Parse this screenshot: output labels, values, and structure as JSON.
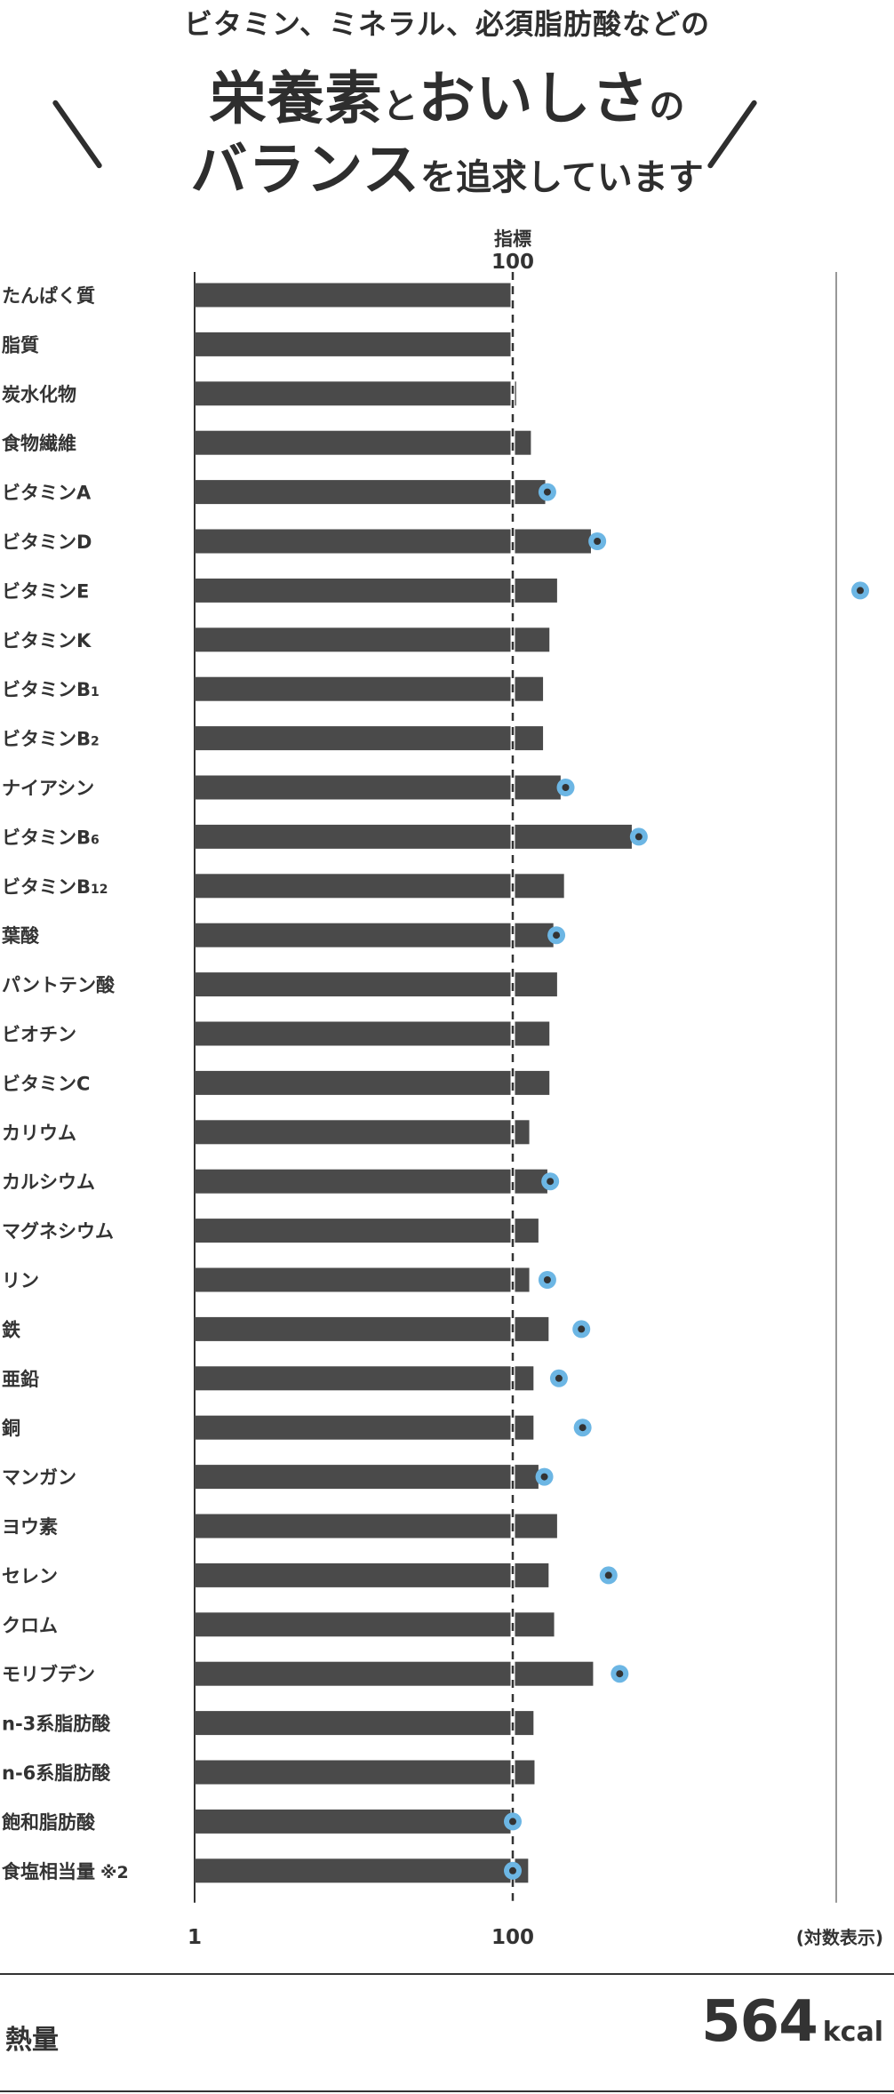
{
  "header": {
    "line1": "ビタミン、ミネラル、必須脂肪酸などの",
    "line2_big_a": "栄養素",
    "line2_small": "と",
    "line2_big_b": "おいしさ",
    "line2_small_b": "の",
    "line3_big": "バランス",
    "line3_small": "を追求しています"
  },
  "colors": {
    "bar": "#4a4a4a",
    "marker_ring": "#6cb6e4",
    "marker_dot": "#333333",
    "text": "#333333"
  },
  "chart_data": {
    "type": "bar",
    "orientation": "horizontal",
    "x_scale": "log",
    "reference": {
      "value": 100,
      "label_top": "指標",
      "label_bottom": "100"
    },
    "x_ticks": [
      "1",
      "100"
    ],
    "scale_note": "(対数表示)",
    "categories": [
      {
        "main": "たんぱく質",
        "sub": ""
      },
      {
        "main": "脂質",
        "sub": ""
      },
      {
        "main": "炭水化物",
        "sub": ""
      },
      {
        "main": "食物繊維",
        "sub": ""
      },
      {
        "main": "ビタミンA",
        "sub": ""
      },
      {
        "main": "ビタミンD",
        "sub": ""
      },
      {
        "main": "ビタミンE",
        "sub": ""
      },
      {
        "main": "ビタミンK",
        "sub": ""
      },
      {
        "main": "ビタミンB",
        "sub": "1"
      },
      {
        "main": "ビタミンB",
        "sub": "2"
      },
      {
        "main": "ナイアシン",
        "sub": ""
      },
      {
        "main": "ビタミンB",
        "sub": "6"
      },
      {
        "main": "ビタミンB",
        "sub": "12"
      },
      {
        "main": "葉酸",
        "sub": ""
      },
      {
        "main": "パントテン酸",
        "sub": ""
      },
      {
        "main": "ビオチン",
        "sub": ""
      },
      {
        "main": "ビタミンC",
        "sub": ""
      },
      {
        "main": "カリウム",
        "sub": ""
      },
      {
        "main": "カルシウム",
        "sub": ""
      },
      {
        "main": "マグネシウム",
        "sub": ""
      },
      {
        "main": "リン",
        "sub": ""
      },
      {
        "main": "鉄",
        "sub": ""
      },
      {
        "main": "亜鉛",
        "sub": ""
      },
      {
        "main": "銅",
        "sub": ""
      },
      {
        "main": "マンガン",
        "sub": ""
      },
      {
        "main": "ヨウ素",
        "sub": ""
      },
      {
        "main": "セレン",
        "sub": ""
      },
      {
        "main": "クロム",
        "sub": ""
      },
      {
        "main": "モリブデン",
        "sub": ""
      },
      {
        "main": "n-3系脂肪酸",
        "sub": ""
      },
      {
        "main": "n-6系脂肪酸",
        "sub": ""
      },
      {
        "main": "飽和脂肪酸",
        "sub": ""
      },
      {
        "main": "食塩相当量",
        "sub": "※2"
      }
    ],
    "values": [
      100,
      99,
      105,
      130,
      160,
      310,
      190,
      170,
      155,
      155,
      200,
      560,
      210,
      180,
      190,
      170,
      170,
      127,
      165,
      145,
      127,
      168,
      135,
      135,
      145,
      190,
      168,
      182,
      320,
      135,
      137,
      97,
      125
    ],
    "markers": [
      null,
      null,
      null,
      null,
      165,
      340,
      null,
      null,
      null,
      null,
      215,
      620,
      null,
      188,
      null,
      null,
      null,
      null,
      172,
      null,
      165,
      270,
      195,
      275,
      158,
      null,
      400,
      null,
      470,
      null,
      null,
      100,
      100
    ],
    "outlier_markers": [
      null,
      null,
      null,
      null,
      null,
      null,
      "off-scale",
      null,
      null,
      null,
      null,
      null,
      null,
      null,
      null,
      null,
      null,
      null,
      null,
      null,
      null,
      null,
      null,
      null,
      null,
      null,
      null,
      null,
      null,
      null,
      null,
      null,
      null
    ]
  },
  "footer": {
    "label": "熱量",
    "value": "564",
    "unit": "kcal"
  }
}
